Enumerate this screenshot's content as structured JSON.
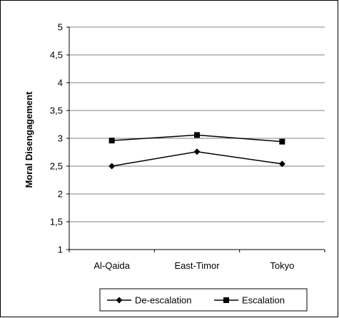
{
  "chart_data": {
    "type": "line",
    "title": "",
    "xlabel": "",
    "ylabel": "Moral Disengagement",
    "categories": [
      "Al-Qaida",
      "East-Timor",
      "Tokyo"
    ],
    "ylim": [
      1,
      5
    ],
    "yticks": [
      "1",
      "1,5",
      "2",
      "2,5",
      "3",
      "3,5",
      "4",
      "4,5",
      "5"
    ],
    "ytick_values": [
      1,
      1.5,
      2,
      2.5,
      3,
      3.5,
      4,
      4.5,
      5
    ],
    "grid": true,
    "legend_position": "bottom",
    "series": [
      {
        "name": "De-escalation",
        "marker": "diamond",
        "values": [
          2.5,
          2.76,
          2.54
        ]
      },
      {
        "name": "Escalation",
        "marker": "square",
        "values": [
          2.96,
          3.06,
          2.94
        ]
      }
    ]
  }
}
